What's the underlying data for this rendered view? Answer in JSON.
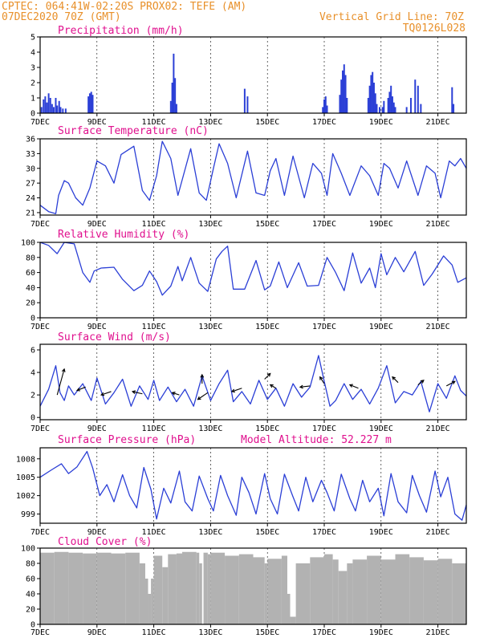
{
  "header": {
    "line1": "CPTEC:  064:41W-02:20S  PROX02: TEFE (AM)",
    "line2": "07DEC2020 70Z (GMT)",
    "right1": "Vertical Grid Line: 70Z",
    "right2": "TQ0126L028"
  },
  "x_axis": {
    "labels": [
      "7DEC",
      "9DEC",
      "11DEC",
      "13DEC",
      "15DEC",
      "17DEC",
      "19DEC",
      "21DEC"
    ],
    "label_days": [
      0,
      2,
      4,
      6,
      8,
      10,
      12,
      14
    ],
    "range_days": [
      0,
      15
    ]
  },
  "chart_data": [
    {
      "id": "precip",
      "type": "bar",
      "title": "Precipitation (mm/h)",
      "ylim": [
        0,
        5
      ],
      "yticks": [
        0,
        1,
        2,
        3,
        4,
        5
      ],
      "x_days": [
        0.05,
        0.12,
        0.18,
        0.24,
        0.3,
        0.36,
        0.42,
        0.48,
        0.55,
        0.6,
        0.67,
        0.72,
        0.8,
        0.9,
        1.7,
        1.75,
        1.8,
        1.85,
        4.6,
        4.65,
        4.7,
        4.75,
        4.8,
        7.2,
        7.3,
        9.95,
        10.0,
        10.05,
        10.1,
        10.55,
        10.6,
        10.65,
        10.7,
        10.75,
        10.8,
        11.55,
        11.6,
        11.65,
        11.7,
        11.75,
        11.8,
        11.85,
        11.95,
        12.05,
        12.1,
        12.25,
        12.3,
        12.35,
        12.4,
        12.45,
        12.5,
        12.9,
        13.05,
        13.2,
        13.3,
        13.4,
        14.5,
        14.55
      ],
      "values": [
        0.4,
        0.9,
        1.1,
        0.7,
        1.3,
        1.0,
        0.6,
        0.4,
        1.0,
        0.5,
        0.8,
        0.4,
        0.3,
        0.3,
        1.1,
        1.3,
        1.4,
        1.2,
        0.8,
        2.0,
        3.9,
        2.3,
        0.6,
        1.6,
        1.1,
        0.4,
        0.9,
        1.1,
        0.5,
        1.2,
        2.2,
        2.8,
        3.2,
        2.5,
        1.0,
        1.0,
        1.8,
        2.5,
        2.7,
        2.0,
        1.3,
        0.6,
        0.4,
        0.4,
        0.8,
        1.0,
        1.4,
        1.8,
        1.1,
        0.7,
        0.4,
        0.4,
        1.0,
        2.2,
        1.8,
        0.6,
        1.7,
        0.6
      ]
    },
    {
      "id": "temp",
      "type": "line",
      "title": "Surface Temperature (nC)",
      "ylim": [
        20.5,
        36
      ],
      "yticks": [
        21,
        24,
        27,
        30,
        33,
        36
      ],
      "x_days": [
        0,
        0.3,
        0.55,
        0.65,
        0.85,
        1.0,
        1.25,
        1.5,
        1.75,
        2.0,
        2.3,
        2.6,
        2.85,
        3.3,
        3.6,
        3.85,
        4.1,
        4.3,
        4.6,
        4.85,
        5.3,
        5.6,
        5.85,
        6.1,
        6.3,
        6.6,
        6.9,
        7.3,
        7.6,
        7.9,
        8.1,
        8.3,
        8.6,
        8.9,
        9.3,
        9.6,
        9.9,
        10.1,
        10.3,
        10.6,
        10.9,
        11.3,
        11.6,
        11.9,
        12.1,
        12.3,
        12.6,
        12.9,
        13.3,
        13.6,
        13.9,
        14.1,
        14.4,
        14.6,
        14.8,
        15.0
      ],
      "values": [
        22.5,
        21.2,
        20.8,
        24.5,
        27.5,
        27.0,
        24.0,
        22.5,
        26.0,
        31.5,
        30.5,
        27.0,
        32.8,
        34.5,
        25.5,
        23.5,
        28.5,
        35.5,
        32.0,
        24.5,
        34.0,
        25.0,
        23.5,
        30.0,
        35.0,
        31.0,
        24.0,
        33.5,
        25.0,
        24.5,
        29.5,
        32.0,
        24.5,
        32.5,
        24.0,
        31.0,
        29.0,
        24.5,
        33.0,
        29.0,
        24.5,
        30.5,
        28.5,
        24.5,
        31.0,
        30.0,
        26.0,
        31.5,
        24.5,
        30.5,
        29.0,
        24.0,
        31.5,
        30.5,
        32.0,
        30.0
      ]
    },
    {
      "id": "rh",
      "type": "line",
      "title": "Relative Humidity (%)",
      "ylim": [
        0,
        100
      ],
      "yticks": [
        0,
        20,
        40,
        60,
        80,
        100
      ],
      "x_days": [
        0,
        0.3,
        0.6,
        0.85,
        1.2,
        1.5,
        1.75,
        1.9,
        2.15,
        2.6,
        2.9,
        3.3,
        3.6,
        3.85,
        4.1,
        4.3,
        4.6,
        4.85,
        5.0,
        5.3,
        5.6,
        5.9,
        6.2,
        6.4,
        6.6,
        6.8,
        7.2,
        7.6,
        7.9,
        8.1,
        8.4,
        8.7,
        9.1,
        9.4,
        9.8,
        10.1,
        10.4,
        10.7,
        11.0,
        11.3,
        11.6,
        11.8,
        12.0,
        12.2,
        12.5,
        12.8,
        13.2,
        13.5,
        13.8,
        14.2,
        14.5,
        14.7,
        15.0
      ],
      "values": [
        100,
        96,
        85,
        100,
        98,
        60,
        47,
        62,
        66,
        67,
        51,
        36,
        43,
        62,
        48,
        30,
        42,
        68,
        49,
        80,
        46,
        35,
        78,
        88,
        95,
        38,
        38,
        76,
        37,
        42,
        74,
        40,
        73,
        42,
        43,
        80,
        60,
        36,
        86,
        46,
        66,
        40,
        85,
        57,
        80,
        61,
        88,
        43,
        58,
        82,
        70,
        47,
        53
      ]
    },
    {
      "id": "wind",
      "type": "line",
      "title": "Surface Wind (m/s)",
      "ylim": [
        -0.2,
        6.5
      ],
      "yticks": [
        0,
        2,
        4,
        6
      ],
      "x_days": [
        0,
        0.3,
        0.55,
        0.7,
        0.85,
        1.0,
        1.2,
        1.5,
        1.8,
        2.0,
        2.3,
        2.6,
        2.9,
        3.2,
        3.5,
        3.8,
        4.0,
        4.2,
        4.5,
        4.8,
        5.1,
        5.4,
        5.7,
        6.0,
        6.3,
        6.6,
        6.8,
        7.1,
        7.4,
        7.7,
        8.0,
        8.3,
        8.6,
        8.9,
        9.2,
        9.5,
        9.8,
        10.0,
        10.2,
        10.4,
        10.7,
        11.0,
        11.3,
        11.6,
        11.9,
        12.2,
        12.5,
        12.8,
        13.1,
        13.4,
        13.7,
        14.0,
        14.3,
        14.6,
        14.8,
        15.0
      ],
      "values": [
        1.0,
        2.5,
        4.6,
        2.2,
        1.5,
        2.8,
        2.0,
        3.0,
        1.5,
        3.5,
        1.2,
        2.2,
        3.4,
        1.0,
        2.8,
        1.6,
        3.3,
        1.5,
        2.7,
        1.4,
        2.5,
        1.0,
        3.7,
        1.5,
        3.0,
        4.2,
        1.4,
        2.3,
        1.2,
        3.3,
        1.6,
        2.6,
        1.0,
        3.0,
        1.8,
        2.7,
        5.5,
        3.2,
        1.0,
        1.5,
        3.0,
        1.6,
        2.5,
        1.2,
        2.6,
        4.6,
        1.3,
        2.3,
        2.0,
        3.2,
        0.5,
        3.0,
        1.7,
        3.7,
        2.4,
        1.9
      ],
      "arrows": [
        {
          "x": 0.6,
          "y": 2.0,
          "dx": 0.25,
          "dy": 2.3
        },
        {
          "x": 1.6,
          "y": 2.7,
          "dx": -0.3,
          "dy": -0.3
        },
        {
          "x": 2.5,
          "y": 2.3,
          "dx": -0.35,
          "dy": -0.3
        },
        {
          "x": 3.6,
          "y": 2.1,
          "dx": -0.35,
          "dy": 0.2
        },
        {
          "x": 4.9,
          "y": 2.0,
          "dx": -0.25,
          "dy": 0.2
        },
        {
          "x": 5.7,
          "y": 3.0,
          "dx": 0.0,
          "dy": 0.8
        },
        {
          "x": 5.9,
          "y": 2.2,
          "dx": -0.35,
          "dy": -0.6
        },
        {
          "x": 7.1,
          "y": 2.6,
          "dx": -0.35,
          "dy": -0.3
        },
        {
          "x": 7.9,
          "y": 3.4,
          "dx": 0.2,
          "dy": 0.5
        },
        {
          "x": 8.3,
          "y": 2.6,
          "dx": -0.2,
          "dy": 0.3
        },
        {
          "x": 9.5,
          "y": 2.8,
          "dx": -0.35,
          "dy": -0.1
        },
        {
          "x": 10.0,
          "y": 3.0,
          "dx": -0.15,
          "dy": 0.6
        },
        {
          "x": 11.2,
          "y": 2.6,
          "dx": -0.3,
          "dy": 0.3
        },
        {
          "x": 12.6,
          "y": 3.1,
          "dx": -0.2,
          "dy": 0.5
        },
        {
          "x": 13.3,
          "y": 2.9,
          "dx": 0.2,
          "dy": 0.4
        },
        {
          "x": 14.3,
          "y": 2.8,
          "dx": 0.3,
          "dy": 0.4
        }
      ]
    },
    {
      "id": "pres",
      "type": "line",
      "title": "Surface Pressure (hPa)",
      "annotation": "Model Altitude: 52.227 m",
      "ylim": [
        997.5,
        1009.8
      ],
      "yticks": [
        999,
        1002,
        1005,
        1008
      ],
      "x_days": [
        0,
        0.4,
        0.75,
        1.0,
        1.3,
        1.65,
        1.85,
        2.1,
        2.35,
        2.6,
        2.9,
        3.15,
        3.4,
        3.65,
        3.9,
        4.1,
        4.35,
        4.6,
        4.9,
        5.1,
        5.35,
        5.6,
        5.9,
        6.1,
        6.35,
        6.6,
        6.9,
        7.1,
        7.35,
        7.6,
        7.9,
        8.1,
        8.35,
        8.6,
        8.9,
        9.1,
        9.35,
        9.6,
        9.9,
        10.1,
        10.35,
        10.6,
        10.9,
        11.1,
        11.35,
        11.6,
        11.9,
        12.1,
        12.35,
        12.6,
        12.9,
        13.1,
        13.35,
        13.6,
        13.9,
        14.1,
        14.35,
        14.6,
        14.85,
        15.0
      ],
      "values": [
        1005,
        1006.2,
        1007.2,
        1005.6,
        1006.7,
        1009.2,
        1006.5,
        1002.0,
        1003.8,
        1001.0,
        1005.4,
        1002.0,
        1000.0,
        1006.6,
        1003.0,
        998.2,
        1003.2,
        1000.8,
        1006.0,
        1001.0,
        999.5,
        1005.2,
        1001.5,
        999.5,
        1005.3,
        1002.0,
        998.8,
        1005.0,
        1002.5,
        999.0,
        1005.6,
        1001.5,
        999.0,
        1005.5,
        1001.8,
        999.5,
        1005.0,
        1001.0,
        1004.5,
        1002.5,
        999.5,
        1005.5,
        1001.5,
        999.5,
        1004.5,
        1001.0,
        1003.2,
        998.7,
        1005.6,
        1001.0,
        999.2,
        1005.3,
        1002.0,
        999.3,
        1006.0,
        1001.8,
        1005.0,
        999.0,
        998.0,
        1000.5
      ]
    },
    {
      "id": "cloud",
      "type": "area",
      "title": "Cloud Cover (%)",
      "ylim": [
        0,
        100
      ],
      "yticks": [
        0,
        20,
        40,
        60,
        80,
        100
      ],
      "x_days": [
        0,
        0.5,
        1.0,
        1.5,
        2.0,
        2.5,
        3.0,
        3.5,
        3.7,
        3.8,
        3.9,
        4.0,
        4.3,
        4.5,
        4.8,
        5.0,
        5.5,
        5.6,
        5.7,
        5.75,
        5.9,
        6.0,
        6.5,
        7.0,
        7.5,
        7.9,
        8.0,
        8.5,
        8.7,
        8.8,
        9.0,
        9.5,
        10.0,
        10.3,
        10.5,
        10.8,
        11.0,
        11.5,
        12.0,
        12.5,
        13.0,
        13.5,
        14.0,
        14.5,
        15.0
      ],
      "values": [
        94,
        95,
        94,
        93,
        94,
        93,
        94,
        80,
        60,
        40,
        60,
        90,
        75,
        92,
        93,
        95,
        94,
        80,
        0,
        94,
        92,
        94,
        90,
        92,
        88,
        80,
        86,
        90,
        40,
        10,
        80,
        88,
        92,
        85,
        70,
        80,
        85,
        90,
        85,
        92,
        88,
        84,
        86,
        80,
        84
      ]
    }
  ]
}
